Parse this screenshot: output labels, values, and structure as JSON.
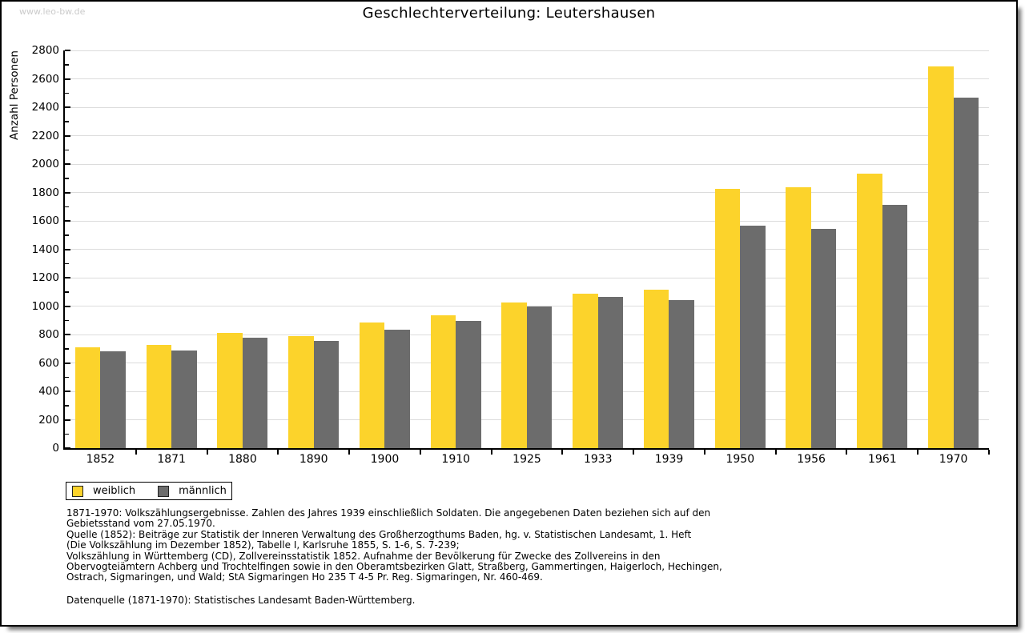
{
  "watermark": "www.leo-bw.de",
  "header": {
    "title": "Geschlechterverteilung: Leutershausen"
  },
  "chart_data": {
    "type": "bar",
    "title": "Geschlechterverteilung: Leutershausen",
    "xlabel": "",
    "ylabel": "Anzahl Personen",
    "ylim": [
      0,
      2800
    ],
    "ytick_step": 200,
    "yminor_step": 100,
    "grid": true,
    "legend_position": "bottom-left",
    "categories": [
      "1852",
      "1871",
      "1880",
      "1890",
      "1900",
      "1910",
      "1925",
      "1933",
      "1939",
      "1950",
      "1956",
      "1961",
      "1970"
    ],
    "series": [
      {
        "name": "weiblich",
        "color": "#FCD32B",
        "values": [
          710,
          725,
          810,
          790,
          885,
          935,
          1025,
          1085,
          1115,
          1825,
          1835,
          1930,
          2685
        ]
      },
      {
        "name": "männlich",
        "color": "#6C6C6C",
        "values": [
          680,
          690,
          775,
          755,
          835,
          895,
          1000,
          1065,
          1045,
          1565,
          1545,
          1715,
          2465
        ]
      }
    ]
  },
  "legend": {
    "items": [
      {
        "label": "weiblich",
        "color": "#FCD32B"
      },
      {
        "label": "männlich",
        "color": "#6C6C6C"
      }
    ]
  },
  "notes": {
    "lines": [
      "1871-1970: Volkszählungsergebnisse. Zahlen des Jahres 1939 einschließlich Soldaten. Die angegebenen Daten beziehen sich auf den",
      "Gebietsstand vom 27.05.1970.",
      "Quelle (1852): Beiträge zur Statistik der Inneren Verwaltung des Großherzogthums Baden, hg. v. Statistischen Landesamt, 1. Heft",
      "(Die Volkszählung im Dezember 1852), Tabelle I, Karlsruhe 1855, S. 1-6, S. 7-239;",
      "Volkszählung in Württemberg (CD), Zollvereinsstatistik 1852. Aufnahme der Bevölkerung für Zwecke des Zollvereins in den",
      "Obervogteiämtern Achberg und Trochtelfingen sowie in den Oberamtsbezirken Glatt, Straßberg, Gammertingen, Haigerloch, Hechingen,",
      "Ostrach, Sigmaringen, und Wald; StA Sigmaringen Ho 235 T 4-5 Pr. Reg. Sigmaringen, Nr. 460-469."
    ],
    "datasource": "Datenquelle (1871-1970): Statistisches Landesamt Baden-Württemberg."
  },
  "colors": {
    "female": "#FCD32B",
    "male": "#6C6C6C",
    "gridline": "#DCDCDC",
    "axis": "#000000",
    "watermark": "#CBCBCB"
  }
}
